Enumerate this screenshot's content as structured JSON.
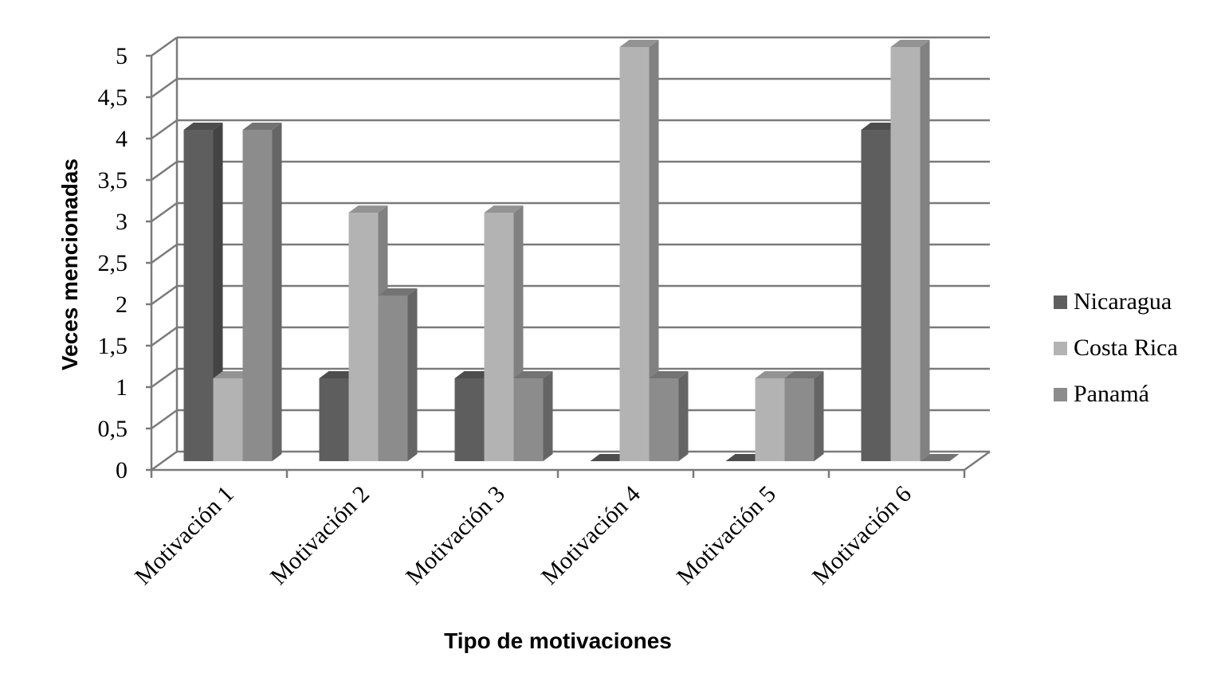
{
  "chart_data": {
    "type": "bar",
    "style": "3d-clustered-column",
    "title": "",
    "xlabel": "Tipo de motivaciones",
    "ylabel": "Veces mencionadas",
    "categories": [
      "Motivación 1",
      "Motivación 2",
      "Motivación 3",
      "Motivación 4",
      "Motivación 5",
      "Motivación 6"
    ],
    "series": [
      {
        "name": "Nicaragua",
        "values": [
          4,
          1,
          1,
          0,
          0,
          4
        ],
        "color": "#5e5e5e"
      },
      {
        "name": "Costa Rica",
        "values": [
          1,
          3,
          3,
          5,
          1,
          5
        ],
        "color": "#b3b3b3"
      },
      {
        "name": "Panamá",
        "values": [
          4,
          2,
          1,
          1,
          1,
          0
        ],
        "color": "#8c8c8c"
      }
    ],
    "ylim": [
      0,
      5
    ],
    "yticks": [
      "0",
      "0,5",
      "1",
      "1,5",
      "2",
      "2,5",
      "3",
      "3,5",
      "4",
      "4,5",
      "5"
    ],
    "grid": true,
    "legend_position": "right"
  }
}
